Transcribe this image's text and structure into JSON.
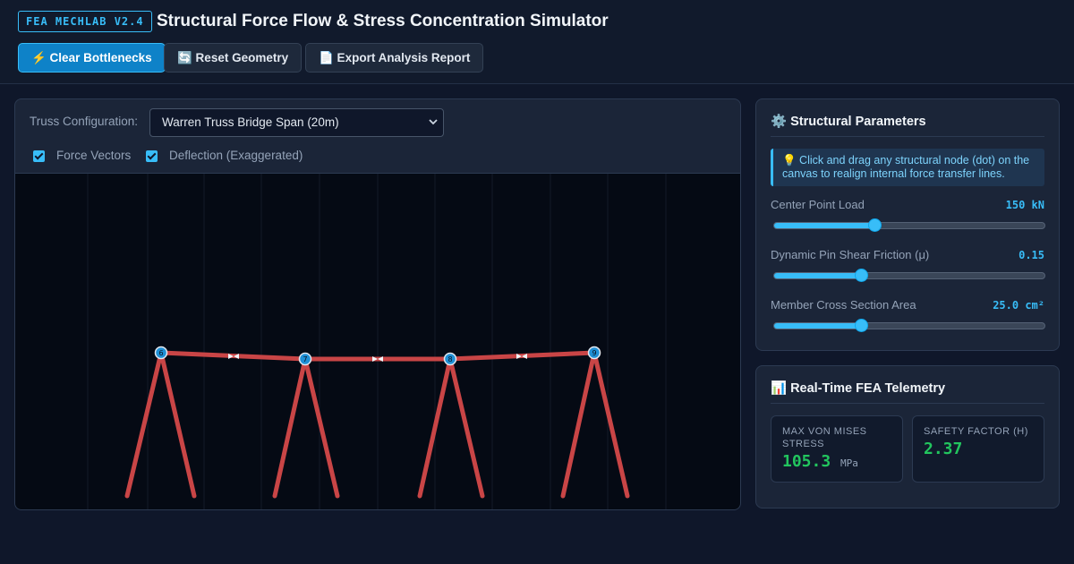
{
  "header": {
    "badge": "FEA MECHLAB V2.4",
    "title": "Structural Force Flow & Stress Concentration Simulator"
  },
  "toolbar": {
    "clear_label": "⚡ Clear Bottlenecks",
    "reset_label": "🔄 Reset Geometry",
    "export_label": "📄 Export Analysis Report"
  },
  "simulation": {
    "config_label": "Truss Configuration:",
    "config_value": "Warren Truss Bridge Span (20m)",
    "force_vectors_label": "Force Vectors",
    "force_vectors_checked": true,
    "deflection_label": "Deflection (Exaggerated)",
    "deflection_checked": true,
    "member_color": "#c94546",
    "node_color": "#1e90d6",
    "nodes": [
      {
        "id": "6"
      },
      {
        "id": "7"
      },
      {
        "id": "8"
      },
      {
        "id": "9"
      }
    ]
  },
  "params": {
    "title": "⚙️ Structural Parameters",
    "hint": "💡 Click and drag any structural node (dot) on the canvas to realign internal force transfer lines.",
    "items": [
      {
        "label": "Center Point Load",
        "value": "150 kN",
        "level": 0.37
      },
      {
        "label": "Dynamic Pin Shear Friction (μ)",
        "value": "0.15",
        "level": 0.32
      },
      {
        "label": "Member Cross Section Area",
        "value": "25.0 cm²",
        "level": 0.32
      }
    ]
  },
  "telemetry": {
    "title": "📊 Real-Time FEA Telemetry",
    "stress_label": "MAX VON MISES STRESS",
    "stress_value": "105.3",
    "stress_unit": "MPa",
    "safety_label": "SAFETY FACTOR (Η)",
    "safety_value": "2.37"
  },
  "colors": {
    "accent": "#38bdf8",
    "good": "#22c55e",
    "background": "#0f172a"
  }
}
